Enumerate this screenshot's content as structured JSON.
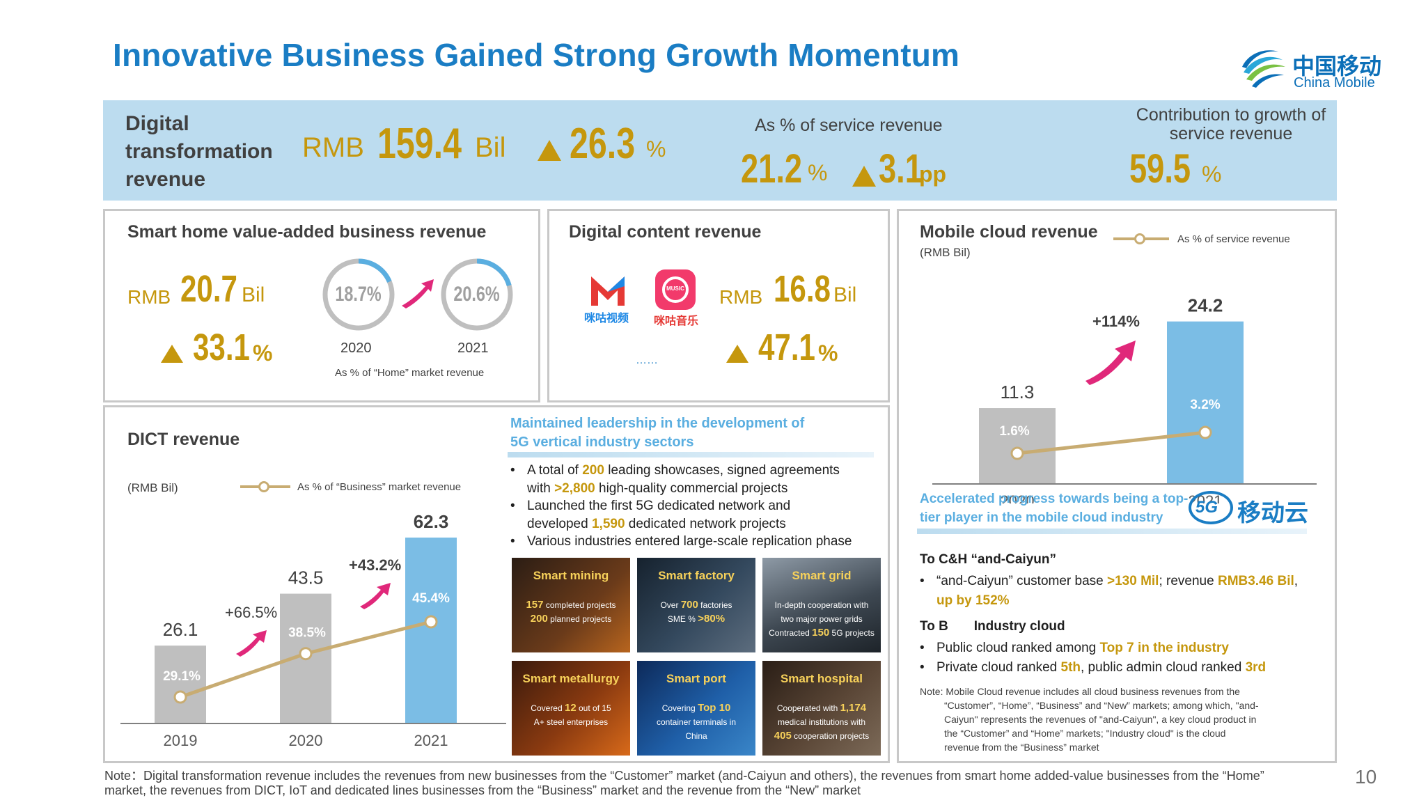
{
  "title": "Innovative Business Gained Strong Growth Momentum",
  "logo": {
    "zh": "中国移动",
    "en": "China Mobile"
  },
  "banner": {
    "label": "Digital\ntransformation\nrevenue",
    "rmb_prefix": "RMB",
    "value": "159.4",
    "unit": "Bil",
    "growth": "26.3",
    "growth_unit": "%",
    "pct_label": "As % of service revenue",
    "pct_value": "21.2",
    "pct_unit": "%",
    "pct_change": "3.1",
    "pct_change_unit": "pp",
    "contrib_label": "Contribution to growth of\nservice revenue",
    "contrib_value": "59.5",
    "contrib_unit": "%"
  },
  "smart_home": {
    "title": "Smart home value-added business revenue",
    "rmb_prefix": "RMB",
    "value": "20.7",
    "unit": "Bil",
    "growth": "33.1",
    "growth_unit": "%",
    "ring_2020": "18.7%",
    "ring_2021": "20.6%",
    "ring_2020_fraction": 0.187,
    "ring_2021_fraction": 0.206,
    "year_2020": "2020",
    "year_2021": "2021",
    "caption": "As % of “Home” market revenue"
  },
  "digital_content": {
    "title": "Digital content revenue",
    "app1_name": "咪咕视频",
    "app2_name": "咪咕音乐",
    "app2_badge": "MUSIC",
    "ellipsis": "……",
    "rmb_prefix": "RMB",
    "value": "16.8",
    "unit": "Bil",
    "growth": "47.1",
    "growth_unit": "%"
  },
  "mobile_cloud": {
    "title": "Mobile cloud revenue",
    "unit_label": "(RMB Bil)",
    "legend": "As % of service revenue",
    "growth_label": "+114%",
    "subhead": "Accelerated progress towards being a top-\ntier player in the mobile cloud industry",
    "brand_text": "移动云",
    "brand_badge": "5G",
    "tocandh_title": "To C&H  “and-Caiyun”",
    "tocandh_b1_a": "“and-Caiyun” customer base ",
    "tocandh_b1_b": ">130 Mil",
    "tocandh_b1_c": ";  revenue ",
    "tocandh_b1_d": "RMB3.46 Bil",
    "tocandh_b1_e": ",",
    "tocandh_b1_f": "up by 152%",
    "tob_title": "To B       Industry cloud",
    "tob_b1_a": "Public cloud ranked among ",
    "tob_b1_b": "Top 7 in the industry",
    "tob_b2_a": "Private cloud ranked ",
    "tob_b2_b": "5th",
    "tob_b2_c": ", public admin cloud ranked ",
    "tob_b2_d": "3rd",
    "note": "Note: Mobile Cloud revenue includes all cloud business revenues from the\n         “Customer”, “Home”, “Business” and “New” markets; among which, \"and-\n         Caiyun\" represents the revenues of \"and-Caiyun\", a key cloud product in\n         the “Customer” and “Home” markets; \"Industry cloud\" is the cloud\n         revenue from the “Business” market"
  },
  "dict": {
    "title": "DICT revenue",
    "unit_label": "(RMB Bil)",
    "legend": "As % of “Business” market revenue",
    "growth_1": "+66.5%",
    "growth_2": "+43.2%"
  },
  "vertical": {
    "subhead": "Maintained leadership in the development of\n5G vertical industry sectors",
    "b1_a": "A total of ",
    "b1_b": "200",
    "b1_c": " leading showcases, signed agreements",
    "b1_d": "with ",
    "b1_e": ">2,800",
    "b1_f": " high-quality commercial projects",
    "b2_a": "Launched the first 5G dedicated network and",
    "b2_b": "developed ",
    "b2_c": "1,590",
    "b2_d": " dedicated network projects",
    "b3": "Various industries entered large-scale replication phase",
    "tiles": [
      {
        "title": "Smart mining",
        "l1a": "157",
        "l1b": " completed projects",
        "l2a": "200",
        "l2b": " planned projects"
      },
      {
        "title": "Smart factory",
        "l1a": "Over ",
        "l1b": "700",
        "l1c": " factories",
        "l2a": "SME % ",
        "l2b": ">80%"
      },
      {
        "title": "Smart grid",
        "l1a": "In-depth cooperation with",
        "l1b": "two major power grids",
        "l2a": "Contracted ",
        "l2b": "150",
        "l2c": " 5G projects"
      },
      {
        "title": "Smart metallurgy",
        "l1a": "Covered ",
        "l1b": "12",
        "l1c": " out of 15",
        "l2a": "A+ steel enterprises"
      },
      {
        "title": "Smart port",
        "l1a": "Covering ",
        "l1b": "Top 10",
        "l2a": "container terminals in",
        "l2b": "China"
      },
      {
        "title": "Smart hospital",
        "l1a": "Cooperated with ",
        "l1b": "1,174",
        "l2a": "medical institutions with",
        "l2b": "405",
        "l2c": " cooperation projects"
      }
    ]
  },
  "chart_data": [
    {
      "type": "bar",
      "title": "DICT revenue",
      "ylabel": "(RMB Bil)",
      "categories": [
        "2019",
        "2020",
        "2021"
      ],
      "series": [
        {
          "name": "DICT revenue",
          "values": [
            26.1,
            43.5,
            62.3
          ]
        },
        {
          "name": "As % of “Business” market revenue",
          "values": [
            29.1,
            38.5,
            45.4
          ]
        }
      ],
      "bar_labels": [
        "26.1",
        "43.5",
        "62.3"
      ],
      "line_labels": [
        "29.1%",
        "38.5%",
        "45.4%"
      ],
      "bar_colors": [
        "#bfbfbf",
        "#bfbfbf",
        "#7bbde5"
      ],
      "line_color": "#c8ac72",
      "ylim": [
        0,
        70
      ]
    },
    {
      "type": "bar",
      "title": "Mobile cloud revenue",
      "ylabel": "(RMB Bil)",
      "categories": [
        "2020",
        "2021"
      ],
      "series": [
        {
          "name": "Mobile cloud revenue",
          "values": [
            11.3,
            24.2
          ]
        },
        {
          "name": "As % of service revenue",
          "values": [
            1.6,
            3.2
          ]
        }
      ],
      "bar_labels": [
        "11.3",
        "24.2"
      ],
      "line_labels": [
        "1.6%",
        "3.2%"
      ],
      "bar_colors": [
        "#bfbfbf",
        "#7bbde5"
      ],
      "line_color": "#c8ac72",
      "ylim": [
        0,
        28
      ]
    }
  ],
  "footer": "Note：Digital transformation revenue includes the revenues from new businesses from the “Customer” market (and-Caiyun and others), the revenues from  smart home added-value businesses from the “Home”\n         market, the revenues from DICT, IoT and dedicated lines businesses from the “Business” market and the revenue from the “New” market",
  "page_number": "10",
  "colors": {
    "accent_blue": "#1a7dc4",
    "gold": "#c5970d",
    "banner_bg": "#bcdcef",
    "magenta": "#e0287a"
  }
}
